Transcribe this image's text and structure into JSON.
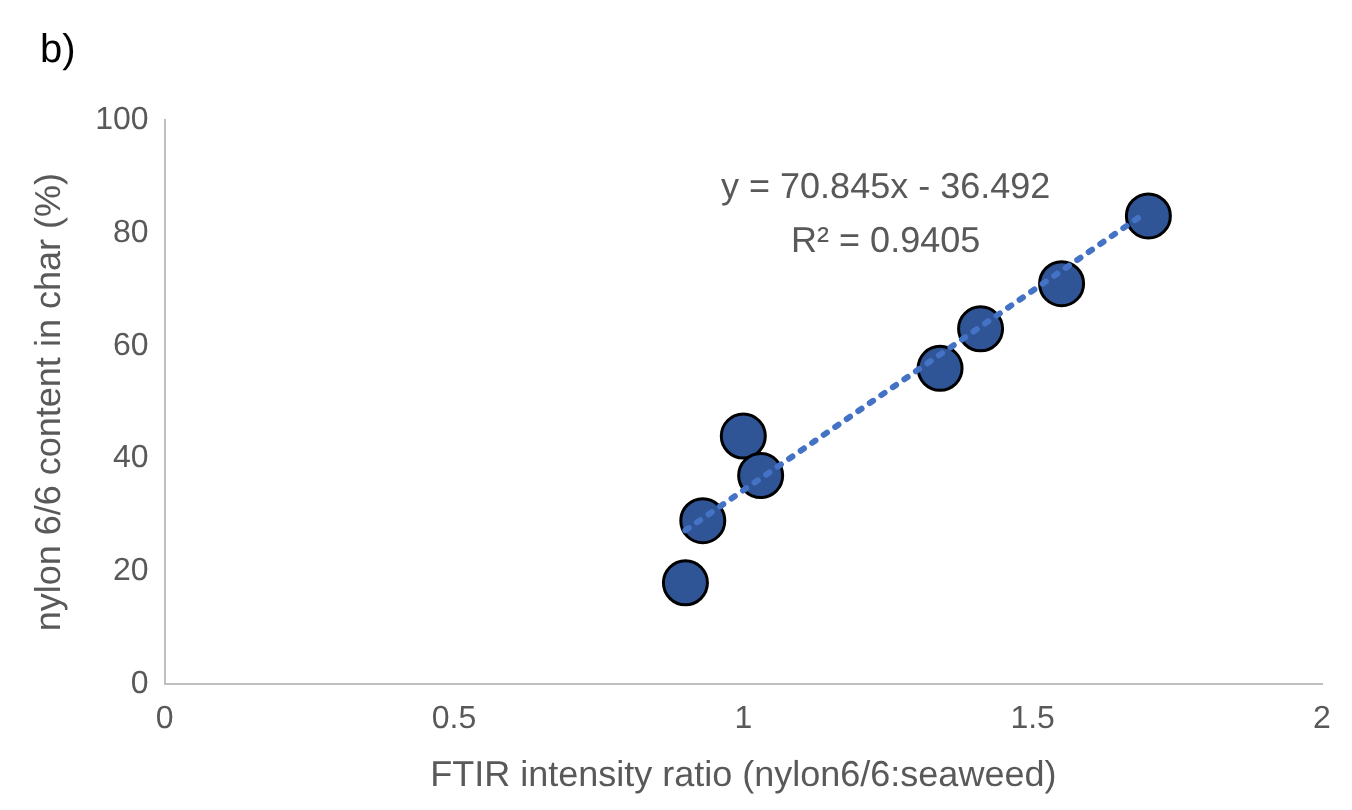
{
  "chart_data": {
    "type": "scatter",
    "title": "b)",
    "xlabel": "FTIR intensity ratio (nylon6/6:seaweed)",
    "ylabel": "nylon 6/6 content in char (%)",
    "series": [
      {
        "color": "#2f5597",
        "x": [
          0.9,
          0.93,
          1.0,
          1.03,
          1.34,
          1.41,
          1.55,
          1.7
        ],
        "values": [
          18,
          29,
          44,
          37,
          56,
          63,
          71,
          83
        ]
      },
      {
        "type": "line",
        "color": "#4472c4",
        "line_style": "dotted",
        "marker": "none",
        "x": [
          0.9,
          1.69
        ],
        "values": [
          27.3,
          83.2
        ]
      }
    ],
    "marker": "circle",
    "xlim": [
      0,
      2
    ],
    "xticks": [
      0,
      0.5,
      1,
      1.5,
      2
    ],
    "ylim": [
      0,
      100
    ],
    "yticks": [
      0,
      20,
      40,
      60,
      80,
      100
    ],
    "grid": false,
    "legend": false,
    "annotations": [
      "y = 70.845x - 36.492",
      "R² = 0.9405"
    ]
  }
}
